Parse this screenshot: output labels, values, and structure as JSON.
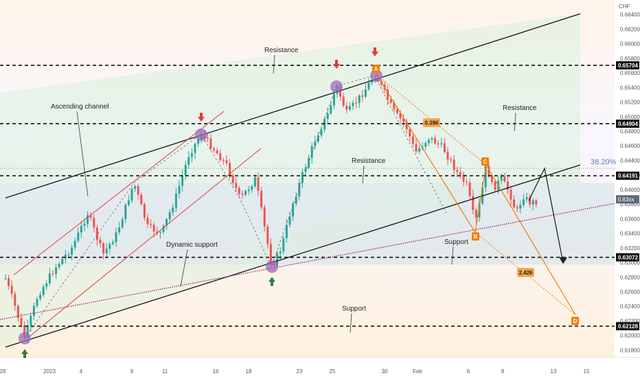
{
  "chart_data": {
    "type": "candlestick",
    "currency": "CHF",
    "ylim": [
      0.617,
      0.666
    ],
    "y_ticks": [
      "0.66400",
      "0.66200",
      "0.66000",
      "0.65800",
      "0.65600",
      "0.65400",
      "0.65200",
      "0.65000",
      "0.64800",
      "0.64600",
      "0.64400",
      "0.64200",
      "0.64000",
      "0.63800",
      "0.63600",
      "0.63400",
      "0.63200",
      "0.63000",
      "0.62800",
      "0.62600",
      "0.62400",
      "0.62200",
      "0.62000",
      "0.61800"
    ],
    "x_ticks": [
      "28",
      "2023",
      "4",
      "9",
      "11",
      "16",
      "18",
      "23",
      "25",
      "30",
      "Feb",
      "6",
      "8",
      "13",
      "15"
    ],
    "price_levels": [
      {
        "label": "0.65704",
        "value": 0.65704
      },
      {
        "label": "0.64904",
        "value": 0.64904
      },
      {
        "label": "0.64191",
        "value": 0.64191
      },
      {
        "label": "0.63072",
        "value": 0.63072
      },
      {
        "label": "0.62128",
        "value": 0.62128
      }
    ],
    "current_price": "0.63xx",
    "fib_label": "38.20%",
    "fib_level": 0.6442,
    "annotations": [
      "Resistance",
      "Ascending channel",
      "Resistance",
      "Resistance",
      "Dynamic support",
      "Support",
      "Support"
    ],
    "pattern_points": [
      "A",
      "B",
      "C",
      "D"
    ],
    "ratio_labels": [
      "0.396",
      "2.426"
    ],
    "colors": {
      "bull": "#26a69a",
      "bear": "#ef5350",
      "pattern": "#f57c00",
      "channel": "#111111",
      "red_channel": "#e53935",
      "dynamic": "#a0307a"
    }
  }
}
